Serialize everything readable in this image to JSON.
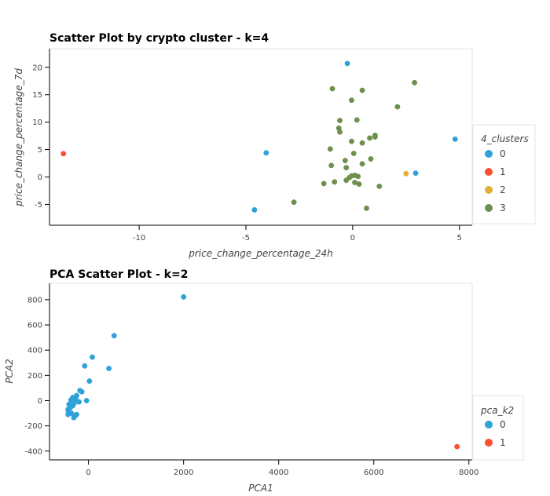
{
  "chart_data": [
    {
      "type": "scatter",
      "title": "Scatter Plot by crypto cluster - k=4",
      "xlabel": "price_change_percentage_24h",
      "ylabel": "price_change_percentage_7d",
      "xlim": [
        -14.2,
        5.6
      ],
      "ylim": [
        -8.8,
        23.4
      ],
      "xticks": [
        -10,
        -5,
        0,
        5
      ],
      "yticks": [
        -5,
        0,
        5,
        10,
        15,
        20
      ],
      "grid": false,
      "legend": {
        "title": "4_clusters",
        "position": "right"
      },
      "series": [
        {
          "name": "0",
          "color": "#30a2da",
          "points": [
            [
              -0.25,
              20.7
            ],
            [
              -4.05,
              4.4
            ],
            [
              4.8,
              6.9
            ],
            [
              2.95,
              0.7
            ],
            [
              -4.6,
              -6.0
            ]
          ]
        },
        {
          "name": "1",
          "color": "#fc4f30",
          "points": [
            [
              -13.55,
              4.25
            ]
          ]
        },
        {
          "name": "2",
          "color": "#e5ae38",
          "points": [
            [
              2.5,
              0.6
            ]
          ]
        },
        {
          "name": "3",
          "color": "#6d904f",
          "points": [
            [
              2.9,
              17.2
            ],
            [
              -0.95,
              16.1
            ],
            [
              0.45,
              15.8
            ],
            [
              -0.05,
              14.0
            ],
            [
              2.1,
              12.8
            ],
            [
              -0.6,
              10.3
            ],
            [
              0.2,
              10.4
            ],
            [
              -0.65,
              8.9
            ],
            [
              -0.6,
              8.2
            ],
            [
              1.05,
              7.6
            ],
            [
              1.05,
              7.3
            ],
            [
              0.8,
              7.1
            ],
            [
              -0.05,
              6.5
            ],
            [
              0.45,
              6.2
            ],
            [
              -1.05,
              5.1
            ],
            [
              0.05,
              4.3
            ],
            [
              -0.35,
              3.0
            ],
            [
              0.85,
              3.3
            ],
            [
              -1.0,
              2.1
            ],
            [
              -0.3,
              1.7
            ],
            [
              0.45,
              2.4
            ],
            [
              -0.05,
              0.2
            ],
            [
              0.1,
              0.3
            ],
            [
              0.25,
              0.1
            ],
            [
              -0.15,
              -0.1
            ],
            [
              -0.3,
              -0.6
            ],
            [
              -0.85,
              -0.9
            ],
            [
              0.1,
              -1.0
            ],
            [
              -1.35,
              -1.2
            ],
            [
              0.3,
              -1.3
            ],
            [
              1.25,
              -1.7
            ],
            [
              -2.75,
              -4.6
            ],
            [
              0.65,
              -5.7
            ]
          ]
        }
      ]
    },
    {
      "type": "scatter",
      "title": "PCA Scatter Plot - k=2",
      "xlabel": "PCA1",
      "ylabel": "PCA2",
      "xlim": [
        -820,
        8070
      ],
      "ylim": [
        -470,
        930
      ],
      "xticks": [
        0,
        2000,
        4000,
        6000,
        8000
      ],
      "yticks": [
        -400,
        -200,
        0,
        200,
        400,
        600,
        800
      ],
      "grid": false,
      "legend": {
        "title": "pca_k2",
        "position": "right"
      },
      "series": [
        {
          "name": "0",
          "color": "#30a2da",
          "points": [
            [
              2000,
              822
            ],
            [
              540,
              515
            ],
            [
              80,
              345
            ],
            [
              -80,
              275
            ],
            [
              430,
              255
            ],
            [
              20,
              155
            ],
            [
              -180,
              80
            ],
            [
              -140,
              70
            ],
            [
              -250,
              40
            ],
            [
              -330,
              25
            ],
            [
              -270,
              15
            ],
            [
              -40,
              0
            ],
            [
              -370,
              5
            ],
            [
              -200,
              -10
            ],
            [
              -300,
              -20
            ],
            [
              -410,
              -30
            ],
            [
              -330,
              -40
            ],
            [
              -380,
              -55
            ],
            [
              -430,
              -70
            ],
            [
              -420,
              -85
            ],
            [
              -400,
              -95
            ],
            [
              -430,
              -110
            ],
            [
              -360,
              -100
            ],
            [
              -250,
              -110
            ],
            [
              -310,
              -135
            ],
            [
              -280,
              -120
            ]
          ]
        },
        {
          "name": "1",
          "color": "#fc4f30",
          "points": [
            [
              7750,
              -365
            ]
          ]
        }
      ]
    }
  ]
}
